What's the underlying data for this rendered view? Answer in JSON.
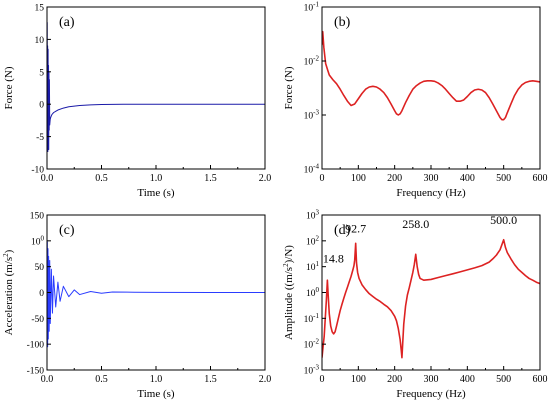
{
  "chart_data": [
    {
      "panel": "(a)",
      "type": "line",
      "xlabel": "Time (s)",
      "ylabel": "Force (N)",
      "xlim": [
        0,
        2.0
      ],
      "ylim": [
        -10,
        15
      ],
      "xticks": [
        "0.0",
        "0.5",
        "1.0",
        "1.5",
        "2.0"
      ],
      "yticks": [
        "-10",
        "-5",
        "0",
        "5",
        "10",
        "15"
      ],
      "color": "#1a1aa8",
      "series": [
        {
          "x": [
            0,
            0.002,
            0.004,
            0.006,
            0.008,
            0.01,
            0.012,
            0.014,
            0.016,
            0.018,
            0.02,
            0.022,
            0.025,
            0.028,
            0.03,
            0.035,
            0.04,
            0.045,
            0.05,
            0.06,
            0.08,
            0.1,
            0.15,
            0.2,
            0.3,
            0.4,
            0.5,
            0.7,
            1.0,
            1.3,
            1.6,
            2.0
          ],
          "y": [
            0,
            12.6,
            -6.5,
            9.0,
            -7.3,
            8.5,
            -5.0,
            6.0,
            -7.0,
            5.0,
            -4.0,
            3.8,
            -3.2,
            -2.6,
            -2.3,
            -2.0,
            -1.8,
            -1.6,
            -1.5,
            -1.3,
            -1.1,
            -0.9,
            -0.6,
            -0.4,
            -0.2,
            -0.1,
            -0.05,
            0.0,
            0.0,
            0.0,
            0.0,
            0.0
          ]
        }
      ]
    },
    {
      "panel": "(b)",
      "type": "line",
      "xlabel": "Frequency (Hz)",
      "ylabel": "Force (N)",
      "xlim": [
        0,
        600
      ],
      "ylim": [
        0.0001,
        0.1
      ],
      "yscale": "log",
      "xticks": [
        "0",
        "100",
        "200",
        "300",
        "400",
        "500",
        "600"
      ],
      "yticks": [
        "10-4",
        "10-3",
        "10-2",
        "10-1"
      ],
      "color": "#dd2222",
      "series": [
        {
          "x": [
            0,
            2,
            5,
            10,
            15,
            20,
            30,
            40,
            50,
            60,
            70,
            80,
            90,
            100,
            110,
            120,
            130,
            140,
            150,
            160,
            170,
            180,
            190,
            200,
            205,
            210,
            215,
            220,
            230,
            240,
            250,
            260,
            270,
            280,
            290,
            300,
            310,
            320,
            330,
            340,
            350,
            360,
            370,
            380,
            390,
            400,
            410,
            420,
            430,
            440,
            450,
            460,
            470,
            480,
            490,
            495,
            500,
            505,
            510,
            520,
            530,
            540,
            550,
            560,
            570,
            580,
            590,
            600
          ],
          "y": [
            0.02,
            0.035,
            0.018,
            0.009,
            0.007,
            0.0055,
            0.0045,
            0.0038,
            0.003,
            0.0023,
            0.0018,
            0.0015,
            0.0016,
            0.002,
            0.0025,
            0.003,
            0.0033,
            0.0034,
            0.0033,
            0.003,
            0.0026,
            0.0021,
            0.0016,
            0.0012,
            0.00105,
            0.001,
            0.00105,
            0.0012,
            0.0017,
            0.0023,
            0.003,
            0.0035,
            0.0039,
            0.0042,
            0.0043,
            0.0043,
            0.0042,
            0.0039,
            0.0035,
            0.003,
            0.0025,
            0.0021,
            0.0018,
            0.0018,
            0.0019,
            0.0022,
            0.0026,
            0.0029,
            0.003,
            0.0029,
            0.0026,
            0.0021,
            0.0016,
            0.0012,
            0.0009,
            0.00082,
            0.00082,
            0.0009,
            0.0011,
            0.0016,
            0.0023,
            0.003,
            0.0036,
            0.004,
            0.0042,
            0.0043,
            0.0042,
            0.0041
          ]
        }
      ]
    },
    {
      "panel": "(c)",
      "type": "line",
      "xlabel": "Time (s)",
      "ylabel": "Acceleration (m/s2)",
      "xlim": [
        0,
        2.0
      ],
      "ylim": [
        -150,
        150
      ],
      "xticks": [
        "0.0",
        "0.5",
        "1.0",
        "1.5",
        "2.0"
      ],
      "yticks": [
        "-150",
        "-100",
        "-50",
        "0",
        "50",
        "100",
        "150"
      ],
      "color": "#2a3cff",
      "series": [
        {
          "x": [
            0,
            0.003,
            0.006,
            0.009,
            0.012,
            0.015,
            0.02,
            0.025,
            0.03,
            0.04,
            0.05,
            0.06,
            0.08,
            0.1,
            0.12,
            0.15,
            0.2,
            0.25,
            0.3,
            0.4,
            0.5,
            0.6,
            0.8,
            1.0,
            1.5,
            2.0
          ],
          "y": [
            0,
            98,
            -105,
            85,
            -90,
            70,
            -75,
            62,
            -60,
            45,
            -40,
            32,
            -28,
            20,
            -17,
            12,
            -8,
            5,
            -4,
            2,
            -1.5,
            1,
            0.5,
            0.3,
            0.1,
            0.0
          ]
        }
      ]
    },
    {
      "panel": "(d)",
      "type": "line",
      "xlabel": "Frequency (Hz)",
      "ylabel": "Amplitude ((m/s2)/N)",
      "xlim": [
        0,
        600
      ],
      "ylim": [
        0.001,
        1000
      ],
      "yscale": "log",
      "xticks": [
        "0",
        "100",
        "200",
        "300",
        "400",
        "500",
        "600"
      ],
      "yticks": [
        "10-3",
        "10-2",
        "10-1",
        "100",
        "101",
        "102",
        "103"
      ],
      "color": "#dd2222",
      "annotations": [
        {
          "text": "14.8",
          "x": 14.8,
          "y": 10
        },
        {
          "text": "92.7",
          "x": 92.7,
          "y": 150
        },
        {
          "text": "258.0",
          "x": 258.0,
          "y": 220
        },
        {
          "text": "500.0",
          "x": 500.0,
          "y": 320
        }
      ],
      "series": [
        {
          "x": [
            0,
            3,
            6,
            9,
            12,
            14.8,
            17,
            20,
            24,
            28,
            32,
            36,
            40,
            45,
            50,
            55,
            60,
            65,
            70,
            75,
            80,
            85,
            88,
            90,
            92.7,
            95,
            98,
            102,
            110,
            120,
            130,
            140,
            150,
            160,
            170,
            180,
            190,
            200,
            205,
            210,
            215,
            218,
            220,
            222,
            225,
            230,
            235,
            240,
            245,
            250,
            254,
            258,
            262,
            266,
            270,
            280,
            300,
            320,
            340,
            360,
            380,
            400,
            420,
            440,
            460,
            470,
            480,
            490,
            495,
            500,
            505,
            510,
            520,
            530,
            540,
            550,
            560,
            570,
            580,
            590,
            600
          ],
          "y": [
            0.003,
            0.008,
            0.02,
            0.1,
            0.5,
            3.0,
            0.8,
            0.15,
            0.05,
            0.03,
            0.025,
            0.03,
            0.05,
            0.1,
            0.2,
            0.35,
            0.6,
            1.0,
            1.6,
            2.6,
            4.2,
            7.5,
            11,
            18,
            80,
            14,
            6,
            3.5,
            2.0,
            1.3,
            0.9,
            0.7,
            0.55,
            0.45,
            0.35,
            0.28,
            0.2,
            0.12,
            0.08,
            0.04,
            0.015,
            0.006,
            0.003,
            0.01,
            0.06,
            0.3,
            0.8,
            1.5,
            3,
            6,
            12,
            30,
            10,
            5,
            3.5,
            3.0,
            3.2,
            3.8,
            4.5,
            5.3,
            6.3,
            7.5,
            9,
            11,
            15,
            20,
            28,
            45,
            70,
            110,
            55,
            35,
            20,
            12,
            8,
            6,
            4.5,
            3.5,
            3,
            2.5,
            2.2
          ]
        }
      ]
    }
  ]
}
